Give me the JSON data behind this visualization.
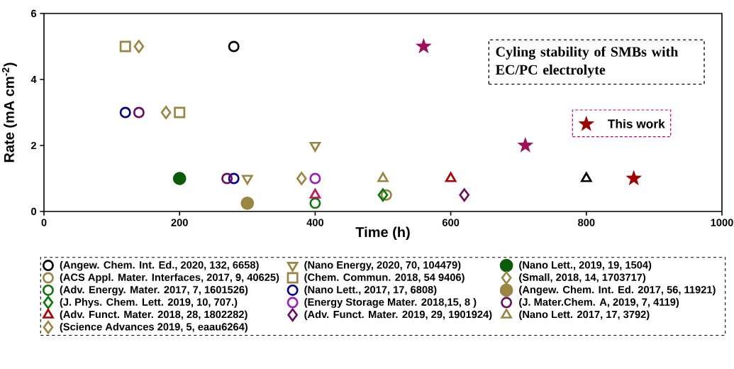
{
  "chart_data": {
    "type": "scatter",
    "xlabel": "Time (h)",
    "ylabel": "Rate (mA cm$^{-2}$)",
    "xlim": [
      0,
      1000
    ],
    "ylim": [
      0,
      6
    ],
    "xticks": [
      0,
      200,
      400,
      600,
      800,
      1000
    ],
    "yticks": [
      0,
      2,
      4,
      6
    ],
    "legend": "bottom",
    "annotations": [
      "Cyling stability of SMBs with EC/PC electrolyte"
    ],
    "series": [
      {
        "name": "(Angew. Chem. Int. Ed., 2020, 132, 6658)",
        "color": "#000000",
        "marker": "circle",
        "x": [
          280
        ],
        "values": [
          5
        ]
      },
      {
        "name": "(Nano Energy, 2020, 70, 104479)",
        "color": "#9a8543",
        "marker": "triangle down",
        "x": [
          400,
          300
        ],
        "values": [
          2,
          1
        ]
      },
      {
        "name": "(Nano Lett., 2019, 19, 1504)",
        "color": "#0a5c0a",
        "marker": "filled circle",
        "x": [
          200
        ],
        "values": [
          1
        ]
      },
      {
        "name": "(ACS Appl. Mater. Interfaces, 2017, 9, 40625)",
        "color": "#9a8543",
        "marker": "circle",
        "x": [
          505
        ],
        "values": [
          0.5
        ]
      },
      {
        "name": "(Chem. Commun. 2018, 54 9406)",
        "color": "#9a8543",
        "marker": "square",
        "x": [
          120,
          200
        ],
        "values": [
          5,
          3
        ]
      },
      {
        "name": "(Small, 2018, 14, 1703717)",
        "color": "#9a8543",
        "marker": "diamond",
        "x": [
          140,
          180
        ],
        "values": [
          5,
          3
        ]
      },
      {
        "name": "(Adv. Energy. Mater. 2017, 7, 1601526)",
        "color": "#0b7a0b",
        "marker": "circle",
        "x": [
          400
        ],
        "values": [
          0.25
        ]
      },
      {
        "name": "(Nano Lett., 2017, 17, 6808)",
        "color": "#00008b",
        "marker": "circle",
        "x": [
          120,
          280
        ],
        "values": [
          3,
          1
        ]
      },
      {
        "name": "(Angew. Chem. Int. Ed. 2017, 56, 11921)",
        "color": "#9a8543",
        "marker": "filled circle",
        "x": [
          300
        ],
        "values": [
          0.25
        ]
      },
      {
        "name": "(J. Phys. Chem. Lett. 2019, 10, 707.)",
        "color": "#0b7a0b",
        "marker": "diamond",
        "x": [
          500
        ],
        "values": [
          0.5
        ]
      },
      {
        "name": "(Energy Storage Mater. 2018,15, 8 )",
        "color": "#9b1fc0",
        "marker": "circle",
        "x": [
          400
        ],
        "values": [
          1
        ]
      },
      {
        "name": "(J. Mater.Chem. A, 2019, 7, 4119)",
        "color": "#6a0d5e",
        "marker": "circle",
        "x": [
          140,
          270
        ],
        "values": [
          3,
          1
        ]
      },
      {
        "name": "(Adv. Funct. Mater. 2018, 28, 1802282)",
        "color": "#b00000",
        "marker": "triangle",
        "x": [
          600
        ],
        "values": [
          1
        ]
      },
      {
        "name": "(Adv. Funct. Mater. 2019, 29, 1901924)",
        "color": "#6a0d5e",
        "marker": "diamond",
        "x": [
          620
        ],
        "values": [
          0.5
        ]
      },
      {
        "name": "(Nano Lett. 2017, 17, 3792)",
        "color": "#9a8543",
        "marker": "triangle",
        "x": [
          500
        ],
        "values": [
          1
        ]
      },
      {
        "name": "(Science Advances 2019, 5, eaau6264)",
        "color": "#9a8543",
        "marker": "diamond",
        "x": [
          380
        ],
        "values": [
          1
        ]
      },
      {
        "color": "#c0185a",
        "marker": "triangle",
        "x": [
          400
        ],
        "values": [
          0.5
        ]
      },
      {
        "color": "#000000",
        "marker": "triangle",
        "x": [
          800
        ],
        "values": [
          1
        ]
      },
      {
        "color": "#a0105a",
        "marker": "star",
        "x": [
          560,
          710
        ],
        "values": [
          5,
          2
        ]
      },
      {
        "name": "This work",
        "color": "#a00000",
        "marker": "star",
        "x": [
          870
        ],
        "values": [
          1
        ]
      }
    ]
  }
}
